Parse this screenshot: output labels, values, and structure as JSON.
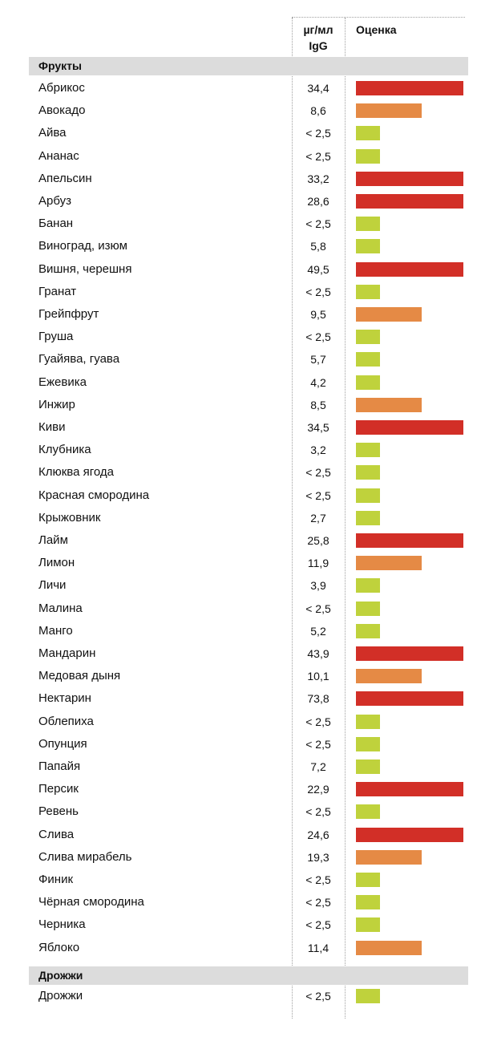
{
  "header": {
    "unit_line1": "µг/мл",
    "unit_line2": "IgG",
    "rating": "Оценка"
  },
  "levels": {
    "high": "#d22f27",
    "medium": "#e58a45",
    "low": "#bfd23c"
  },
  "sections": [
    {
      "title": "Фрукты",
      "items": [
        {
          "name": "Абрикос",
          "value": "34,4",
          "level": "high"
        },
        {
          "name": "Авокадо",
          "value": "8,6",
          "level": "medium"
        },
        {
          "name": "Айва",
          "value": "< 2,5",
          "level": "low"
        },
        {
          "name": "Ананас",
          "value": "< 2,5",
          "level": "low"
        },
        {
          "name": "Апельсин",
          "value": "33,2",
          "level": "high"
        },
        {
          "name": "Арбуз",
          "value": "28,6",
          "level": "high"
        },
        {
          "name": "Банан",
          "value": "< 2,5",
          "level": "low"
        },
        {
          "name": "Виноград, изюм",
          "value": "5,8",
          "level": "low"
        },
        {
          "name": "Вишня, черешня",
          "value": "49,5",
          "level": "high"
        },
        {
          "name": "Гранат",
          "value": "< 2,5",
          "level": "low"
        },
        {
          "name": "Грейпфрут",
          "value": "9,5",
          "level": "medium"
        },
        {
          "name": "Груша",
          "value": "< 2,5",
          "level": "low"
        },
        {
          "name": "Гуайява, гуава",
          "value": "5,7",
          "level": "low"
        },
        {
          "name": "Ежевика",
          "value": "4,2",
          "level": "low"
        },
        {
          "name": "Инжир",
          "value": "8,5",
          "level": "medium"
        },
        {
          "name": "Киви",
          "value": "34,5",
          "level": "high"
        },
        {
          "name": "Клубника",
          "value": "3,2",
          "level": "low"
        },
        {
          "name": "Клюква ягода",
          "value": "< 2,5",
          "level": "low"
        },
        {
          "name": "Красная смородина",
          "value": "< 2,5",
          "level": "low"
        },
        {
          "name": "Крыжовник",
          "value": "2,7",
          "level": "low"
        },
        {
          "name": "Лайм",
          "value": "25,8",
          "level": "high"
        },
        {
          "name": "Лимон",
          "value": "11,9",
          "level": "medium"
        },
        {
          "name": "Личи",
          "value": "3,9",
          "level": "low"
        },
        {
          "name": "Малина",
          "value": "< 2,5",
          "level": "low"
        },
        {
          "name": "Манго",
          "value": "5,2",
          "level": "low"
        },
        {
          "name": "Мандарин",
          "value": "43,9",
          "level": "high"
        },
        {
          "name": "Медовая дыня",
          "value": "10,1",
          "level": "medium"
        },
        {
          "name": "Нектарин",
          "value": "73,8",
          "level": "high"
        },
        {
          "name": "Облепиха",
          "value": "< 2,5",
          "level": "low"
        },
        {
          "name": "Опунция",
          "value": "< 2,5",
          "level": "low"
        },
        {
          "name": "Папайя",
          "value": "7,2",
          "level": "low"
        },
        {
          "name": "Персик",
          "value": "22,9",
          "level": "high"
        },
        {
          "name": "Ревень",
          "value": "< 2,5",
          "level": "low"
        },
        {
          "name": "Слива",
          "value": "24,6",
          "level": "high"
        },
        {
          "name": "Слива мирабель",
          "value": "19,3",
          "level": "medium"
        },
        {
          "name": "Финик",
          "value": "< 2,5",
          "level": "low"
        },
        {
          "name": "Чёрная смородина",
          "value": "< 2,5",
          "level": "low"
        },
        {
          "name": "Черника",
          "value": "< 2,5",
          "level": "low"
        },
        {
          "name": "Яблоко",
          "value": "11,4",
          "level": "medium"
        }
      ]
    },
    {
      "title": "Дрожжи",
      "items": [
        {
          "name": "Дрожжи",
          "value": "< 2,5",
          "level": "low"
        }
      ]
    }
  ]
}
